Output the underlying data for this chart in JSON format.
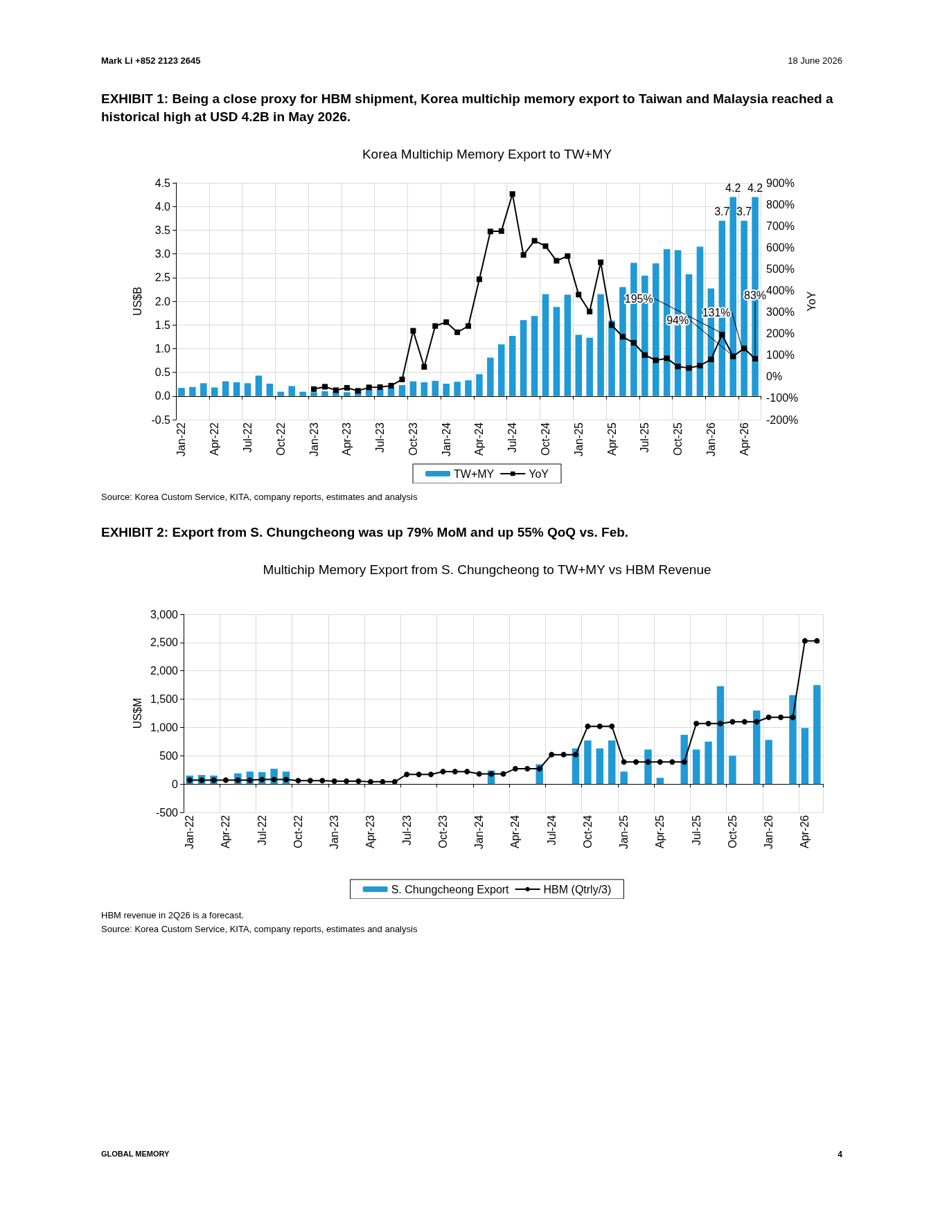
{
  "chart_data": [
    {
      "type": "bar",
      "title": "Korea Multichip Memory Export to TW+MY",
      "subtitle": "EXHIBIT 1: Being a close proxy for HBM shipment, Korea multichip memory export to Taiwan and Malaysia reached a historical high at USD 4.2B in May 2026.",
      "ylabel": "US$B",
      "y2label": "YoY",
      "annotations": [
        "Mark Li  +852 2123 2645",
        "18 June 2026",
        "Source: Korea Custom Service, KITA, company reports, estimates and analysis"
      ],
      "categories": [
        "Jan-22",
        null,
        null,
        "Apr-22",
        null,
        null,
        "Jul-22",
        null,
        null,
        "Oct-22",
        null,
        null,
        "Jan-23",
        null,
        null,
        "Apr-23",
        null,
        null,
        "Jul-23",
        null,
        null,
        "Oct-23",
        null,
        null,
        "Jan-24",
        null,
        null,
        "Apr-24",
        null,
        null,
        "Jul-24",
        null,
        null,
        "Oct-24",
        null,
        null,
        "Jan-25",
        null,
        null,
        "Apr-25",
        null,
        null,
        "Jul-25",
        null,
        null,
        "Oct-25",
        null,
        null,
        "Jan-26",
        null,
        null,
        "Apr-26",
        null
      ],
      "series": [
        {
          "name": "TW+MY",
          "color": "#1f9ad6",
          "values": [
            0.17,
            0.19,
            0.27,
            0.18,
            0.31,
            0.29,
            0.27,
            0.43,
            0.26,
            0.09,
            0.21,
            0.09,
            0.08,
            0.1,
            0.1,
            0.08,
            0.1,
            0.14,
            0.14,
            0.18,
            0.23,
            0.31,
            0.29,
            0.32,
            0.26,
            0.3,
            0.33,
            0.46,
            0.81,
            1.09,
            1.27,
            1.6,
            1.69,
            2.15,
            1.88,
            2.14,
            1.29,
            1.23,
            2.15,
            1.59,
            2.3,
            2.81,
            2.54,
            2.8,
            3.1,
            3.08,
            2.57,
            3.15,
            2.27,
            3.7,
            4.2,
            3.7,
            4.2
          ],
          "value_labels": [
            null,
            null,
            null,
            null,
            null,
            null,
            null,
            null,
            null,
            null,
            null,
            null,
            null,
            null,
            null,
            null,
            null,
            null,
            null,
            null,
            null,
            null,
            null,
            null,
            null,
            null,
            null,
            null,
            null,
            null,
            null,
            null,
            null,
            null,
            null,
            null,
            null,
            null,
            null,
            null,
            null,
            null,
            null,
            null,
            null,
            null,
            null,
            null,
            null,
            "3.7",
            "4.2",
            "3.7",
            "4.2"
          ]
        },
        {
          "name": "YoY",
          "type": "line",
          "axis": "y2",
          "color": "#000000",
          "values": [
            null,
            null,
            null,
            null,
            null,
            null,
            null,
            null,
            null,
            null,
            null,
            null,
            -58,
            -47,
            -63,
            -52,
            -66,
            -50,
            -49,
            -42,
            -13,
            213,
            45,
            235,
            253,
            206,
            235,
            452,
            674,
            676,
            848,
            565,
            631,
            606,
            538,
            560,
            381,
            302,
            531,
            239,
            185,
            157,
            100,
            76,
            85,
            47,
            40,
            51,
            80,
            195,
            94,
            131,
            83
          ],
          "value_labels": [
            null,
            null,
            null,
            null,
            null,
            null,
            null,
            null,
            null,
            null,
            null,
            null,
            null,
            null,
            null,
            null,
            null,
            null,
            null,
            null,
            null,
            null,
            null,
            null,
            null,
            null,
            null,
            null,
            null,
            null,
            null,
            null,
            null,
            null,
            null,
            null,
            null,
            null,
            null,
            null,
            null,
            null,
            null,
            null,
            null,
            null,
            null,
            null,
            null,
            "195%",
            "94%",
            "131%",
            "83%"
          ]
        }
      ],
      "ylim": [
        -0.5,
        4.5
      ],
      "yticks": [
        {
          "value": -0.5,
          "label": "-0.5"
        },
        {
          "value": 0,
          "label": "0.0"
        },
        {
          "value": 0.5,
          "label": "0.5"
        },
        {
          "value": 1,
          "label": "1.0"
        },
        {
          "value": 1.5,
          "label": "1.5"
        },
        {
          "value": 2,
          "label": "2.0"
        },
        {
          "value": 2.5,
          "label": "2.5"
        },
        {
          "value": 3,
          "label": "3.0"
        },
        {
          "value": 3.5,
          "label": "3.5"
        },
        {
          "value": 4,
          "label": "4.0"
        },
        {
          "value": 4.5,
          "label": "4.5"
        }
      ],
      "y2lim": [
        -200,
        900
      ],
      "y2ticks": [
        {
          "value": -200,
          "label": "-200%"
        },
        {
          "value": -100,
          "label": "-100%"
        },
        {
          "value": 0,
          "label": "0%"
        },
        {
          "value": 100,
          "label": "100%"
        },
        {
          "value": 200,
          "label": "200%"
        },
        {
          "value": 300,
          "label": "300%"
        },
        {
          "value": 400,
          "label": "400%"
        },
        {
          "value": 500,
          "label": "500%"
        },
        {
          "value": 600,
          "label": "600%"
        },
        {
          "value": 700,
          "label": "700%"
        },
        {
          "value": 800,
          "label": "800%"
        },
        {
          "value": 900,
          "label": "900%"
        }
      ],
      "grid": true,
      "legend": "bottom",
      "marker": "square"
    },
    {
      "type": "bar",
      "title": "Multichip Memory Export from S. Chungcheong to TW+MY vs HBM Revenue",
      "subtitle": "EXHIBIT 2: Export from S. Chungcheong was up 79% MoM and up 55% QoQ vs. Feb.",
      "ylabel": "US$M",
      "annotations": [
        "HBM revenue in 2Q26 is a forecast.",
        "Source: Korea Custom Service, KITA, company reports, estimates and analysis",
        "GLOBAL MEMORY",
        "4"
      ],
      "categories": [
        "Jan-22",
        null,
        null,
        "Apr-22",
        null,
        null,
        "Jul-22",
        null,
        null,
        "Oct-22",
        null,
        null,
        "Jan-23",
        null,
        null,
        "Apr-23",
        null,
        null,
        "Jul-23",
        null,
        null,
        "Oct-23",
        null,
        null,
        "Jan-24",
        null,
        null,
        "Apr-24",
        null,
        null,
        "Jul-24",
        null,
        null,
        "Oct-24",
        null,
        null,
        "Jan-25",
        null,
        null,
        "Apr-25",
        null,
        null,
        "Jul-25",
        null,
        null,
        "Oct-25",
        null,
        null,
        "Jan-26",
        null,
        null,
        "Apr-26",
        null
      ],
      "series": [
        {
          "name": "S. Chungcheong Export",
          "color": "#1f9ad6",
          "values": [
            150,
            160,
            150,
            null,
            190,
            220,
            210,
            270,
            220,
            null,
            null,
            null,
            null,
            null,
            null,
            null,
            null,
            null,
            null,
            null,
            null,
            null,
            null,
            null,
            null,
            240,
            null,
            null,
            null,
            350,
            null,
            null,
            630,
            770,
            630,
            770,
            220,
            null,
            610,
            110,
            null,
            870,
            610,
            750,
            1730,
            500,
            null,
            1300,
            780,
            null,
            1570,
            990,
            1750
          ]
        },
        {
          "name": "HBM (Qtrly/3)",
          "type": "line",
          "color": "#000000",
          "values": [
            70,
            70,
            70,
            70,
            70,
            70,
            80,
            80,
            80,
            60,
            60,
            60,
            50,
            50,
            50,
            40,
            40,
            40,
            170,
            170,
            170,
            220,
            220,
            220,
            180,
            180,
            180,
            270,
            270,
            270,
            520,
            520,
            520,
            1020,
            1020,
            1020,
            390,
            390,
            390,
            390,
            390,
            390,
            1070,
            1070,
            1070,
            1100,
            1100,
            1100,
            1180,
            1180,
            1180,
            2530,
            2530
          ]
        }
      ],
      "ylim": [
        -500,
        3000
      ],
      "yticks": [
        {
          "value": -500,
          "label": "-500"
        },
        {
          "value": 0,
          "label": "0"
        },
        {
          "value": 500,
          "label": "500"
        },
        {
          "value": 1000,
          "label": "1,000"
        },
        {
          "value": 1500,
          "label": "1,500"
        },
        {
          "value": 2000,
          "label": "2,000"
        },
        {
          "value": 2500,
          "label": "2,500"
        },
        {
          "value": 3000,
          "label": "3,000"
        }
      ],
      "grid": true,
      "legend": "bottom",
      "marker": "circle"
    }
  ]
}
